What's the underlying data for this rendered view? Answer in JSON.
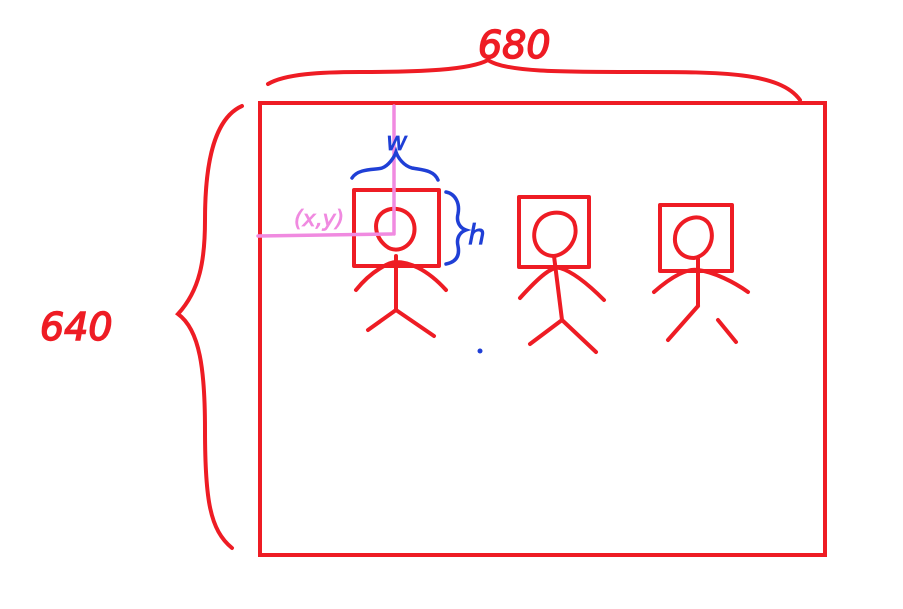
{
  "frame": {
    "width_label": "680",
    "height_label": "640"
  },
  "bbox": {
    "w_label": "w",
    "h_label": "h",
    "origin_label": "(x,y)"
  },
  "people_count": 3,
  "colors": {
    "frame": "#ee1c24",
    "bbox_annotation": "#1f3fd6",
    "origin_annotation": "#f08ae0"
  }
}
